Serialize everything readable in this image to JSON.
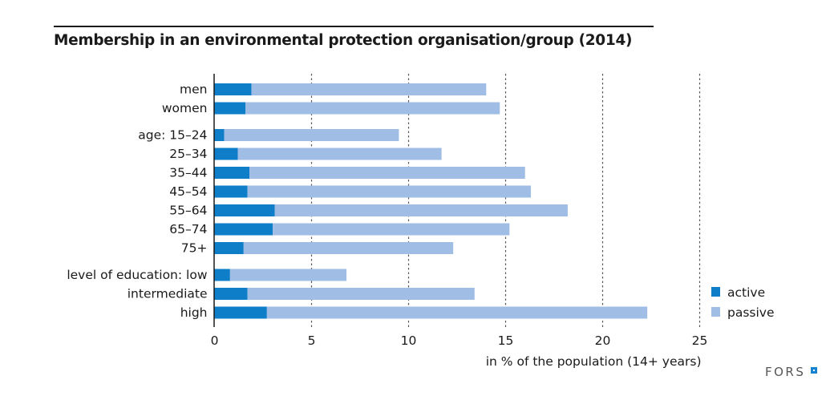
{
  "chart_data": {
    "type": "bar",
    "orientation": "horizontal",
    "stacked": true,
    "title": "Membership in an environmental protection organisation/group (2014)",
    "xlabel": "in % of the population (14+ years)",
    "ylabel": "",
    "xlim": [
      0,
      25
    ],
    "xticks": [
      0,
      5,
      10,
      15,
      20,
      25
    ],
    "grid": "vertical dotted",
    "legend_position": "bottom-right",
    "categories": [
      {
        "label": "men",
        "group": "sex"
      },
      {
        "label": "women",
        "group": "sex"
      },
      {
        "label": "age: 15–24",
        "group": "age"
      },
      {
        "label": "25–34",
        "group": "age"
      },
      {
        "label": "35–44",
        "group": "age"
      },
      {
        "label": "45–54",
        "group": "age"
      },
      {
        "label": "55–64",
        "group": "age"
      },
      {
        "label": "65–74",
        "group": "age"
      },
      {
        "label": "75+",
        "group": "age"
      },
      {
        "label": "level of education: low",
        "group": "education"
      },
      {
        "label": "intermediate",
        "group": "education"
      },
      {
        "label": "high",
        "group": "education"
      }
    ],
    "series": [
      {
        "name": "active",
        "color": "#0f7ec8",
        "values": [
          1.9,
          1.6,
          0.5,
          1.2,
          1.8,
          1.7,
          3.1,
          3.0,
          1.5,
          0.8,
          1.7,
          2.7
        ]
      },
      {
        "name": "passive",
        "color": "#a0bde6",
        "values": [
          12.1,
          13.1,
          9.0,
          10.5,
          14.2,
          14.6,
          15.1,
          12.2,
          10.8,
          6.0,
          11.7,
          19.6
        ]
      }
    ],
    "totals": [
      14.0,
      14.7,
      9.5,
      11.7,
      16.0,
      16.3,
      18.2,
      15.2,
      12.3,
      6.8,
      13.4,
      22.3
    ]
  },
  "branding": {
    "logo_text": "FORS"
  }
}
